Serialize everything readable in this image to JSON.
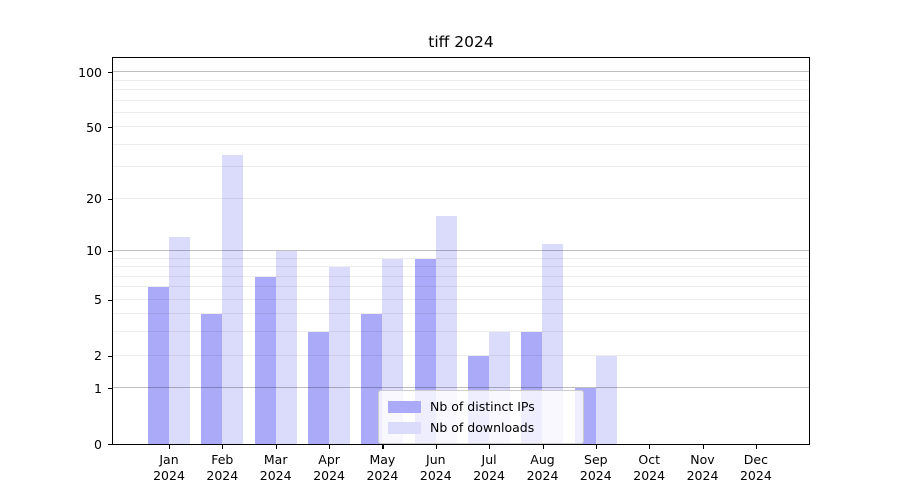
{
  "title": "tiff 2024",
  "legend": {
    "items": [
      {
        "label": "Nb of distinct IPs",
        "color": "#aaaaf9"
      },
      {
        "label": "Nb of downloads",
        "color": "#dbdbfb"
      }
    ]
  },
  "chart_data": {
    "type": "bar",
    "title": "tiff 2024",
    "y_scale": "log1p",
    "grid": true,
    "legend_position": "lower center",
    "categories": [
      "Jan 2024",
      "Feb 2024",
      "Mar 2024",
      "Apr 2024",
      "May 2024",
      "Jun 2024",
      "Jul 2024",
      "Aug 2024",
      "Sep 2024",
      "Oct 2024",
      "Nov 2024",
      "Dec 2024"
    ],
    "series": [
      {
        "name": "Nb of distinct IPs",
        "color": "#aaaaf9",
        "values": [
          6,
          4,
          7,
          3,
          4,
          9,
          2,
          3,
          1,
          0,
          0,
          0
        ]
      },
      {
        "name": "Nb of downloads",
        "color": "#dbdbfb",
        "values": [
          12,
          35,
          10,
          8,
          9,
          16,
          3,
          11,
          2,
          0,
          0,
          0
        ]
      }
    ],
    "y_ticks": [
      0,
      1,
      2,
      5,
      10,
      20,
      50,
      100
    ],
    "y_gridlines": {
      "major": [
        1,
        10,
        100
      ],
      "minor": [
        2,
        3,
        4,
        5,
        6,
        7,
        8,
        9,
        20,
        30,
        40,
        50,
        60,
        70,
        80,
        90
      ]
    },
    "ylim": [
      0,
      121
    ]
  }
}
